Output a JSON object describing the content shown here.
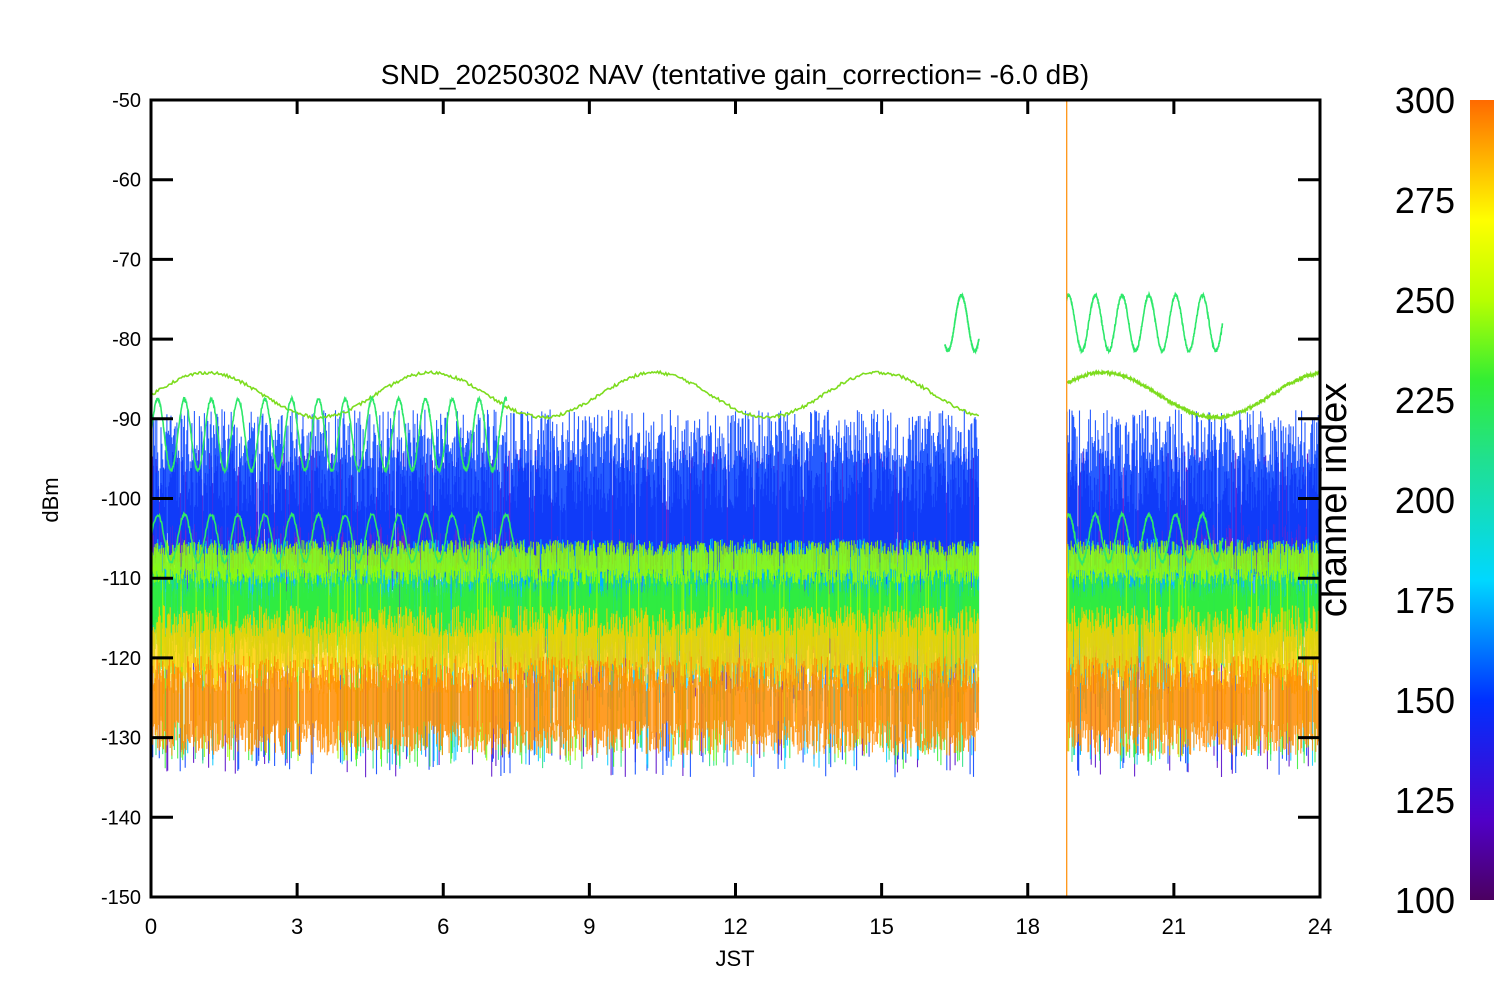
{
  "chart_data": {
    "type": "line",
    "title": "SND_20250302 NAV (tentative gain_correction= -6.0 dB)",
    "xlabel": "JST",
    "ylabel": "dBm",
    "xlim": [
      0,
      24
    ],
    "ylim": [
      -150,
      -50
    ],
    "x_ticks": [
      "0",
      "3",
      "6",
      "9",
      "12",
      "15",
      "18",
      "21",
      "24"
    ],
    "y_ticks": [
      "-50",
      "-60",
      "-70",
      "-80",
      "-90",
      "-100",
      "-110",
      "-120",
      "-130",
      "-140",
      "-150"
    ],
    "colorbar": {
      "label": "channel index",
      "range": [
        100,
        300
      ],
      "ticks": [
        "300",
        "275",
        "250",
        "225",
        "200",
        "175",
        "150",
        "125",
        "100"
      ],
      "colormap": "rainbow"
    },
    "data_gap": [
      17.0,
      18.8
    ],
    "marker_line_x": 18.8,
    "series": [
      {
        "channel": 290,
        "color": "#ff8c00",
        "level": -126,
        "spread": 4.5,
        "noise_floor": -131
      },
      {
        "channel": 275,
        "color": "#ffd000",
        "level": -119,
        "spread": 4,
        "noise_floor": -130
      },
      {
        "channel": 250,
        "color": "#9aff00",
        "level": -108,
        "spread": 2,
        "noise_floor": -133
      },
      {
        "channel": 225,
        "color": "#33ee33",
        "level": -114,
        "spread": 4,
        "noise_floor": -134
      },
      {
        "channel": 200,
        "color": "#20e080",
        "level": -115,
        "spread": 5,
        "noise_floor": -134
      },
      {
        "channel": 175,
        "color": "#00c8ff",
        "level": -112,
        "spread": 5,
        "noise_floor": -134
      },
      {
        "channel": 150,
        "color": "#0040ff",
        "level": -100,
        "spread": 8,
        "noise_floor": -135
      },
      {
        "channel": 120,
        "color": "#5000c8",
        "level": -105,
        "spread": 8,
        "noise_floor": -135
      }
    ],
    "periodic_traces": [
      {
        "color": "#7ddc1e",
        "center": -87,
        "amplitude": 2.8,
        "period_hours": 4.6,
        "segments": [
          [
            0,
            17
          ],
          [
            18.8,
            24
          ]
        ]
      },
      {
        "color": "#2ee86a",
        "center": -92,
        "amplitude": 4.5,
        "period_hours": 0.55,
        "segments": [
          [
            0,
            4.5
          ],
          [
            4.5,
            7.3
          ]
        ]
      },
      {
        "color": "#2ee86a",
        "center": -78,
        "amplitude": 3.5,
        "period_hours": 0.55,
        "segments": [
          [
            16.3,
            17
          ],
          [
            18.8,
            22
          ]
        ]
      },
      {
        "color": "#2ee86a",
        "center": -105,
        "amplitude": 3,
        "period_hours": 0.55,
        "segments": [
          [
            0,
            7.5
          ],
          [
            18.8,
            22
          ]
        ]
      }
    ]
  }
}
